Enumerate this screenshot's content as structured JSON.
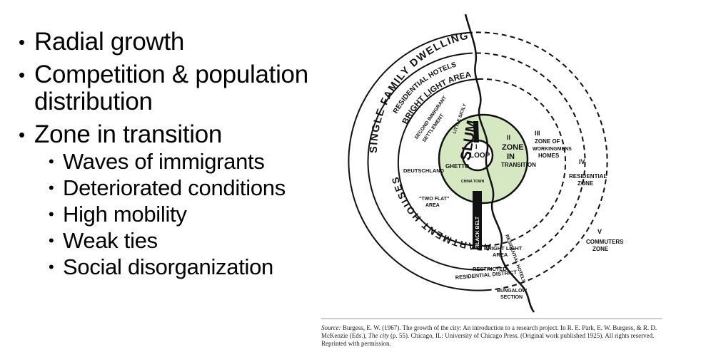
{
  "bullets": [
    {
      "text": "Radial growth",
      "sub": []
    },
    {
      "text": "Competition & population distribution",
      "sub": []
    },
    {
      "text": "Zone in transition",
      "sub": [
        "Waves of immigrants",
        "Deteriorated conditions",
        "High mobility",
        "Weak ties",
        "Social disorganization"
      ]
    }
  ],
  "diagram": {
    "zones": {
      "z1_num": "I",
      "z1_name": "LOOP",
      "z2_num": "II",
      "z2_name_a": "ZONE",
      "z2_name_b": "IN",
      "z2_name_c": "TRANSITION",
      "z3_num": "III",
      "z3_name_a": "ZONE OF",
      "z3_name_b": "WORKINGMENS",
      "z3_name_c": "HOMES",
      "z4_num": "IV",
      "z4_name_a": "RESIDENTIAL",
      "z4_name_b": "ZONE",
      "z5_num": "V",
      "z5_name_a": "COMMUTERS",
      "z5_name_b": "ZONE"
    },
    "labels": {
      "single_family": "SINGLE FAMILY DWELLINGS",
      "residential_hotels": "RESIDENTIAL HOTELS",
      "bright_light_area": "BRIGHT LIGHT AREA",
      "second_immigrant": "SECOND IMMIGRANT",
      "settlement": "SETTLEMENT",
      "apartment_houses": "APARTMENT HOUSES",
      "deutschland": "DEUTSCHLAND",
      "ghetto": "GHETTO",
      "slum": "SLUM",
      "little_sicily": "LITTLE SICILY",
      "chinatown": "CHINA TOWN",
      "two_flat": "\"TWO FLAT\"",
      "two_flat_area": "AREA",
      "black_belt": "BLACK BELT",
      "bright_light_lower_a": "BRIGHT LIGHT",
      "bright_light_lower_b": "AREA",
      "restricted_a": "RESTRICTED",
      "restricted_b": "RESIDENTIAL DISTRICT",
      "residential_hotels_lower": "RESIDENTIAL HOTELS",
      "bungalow_a": "BUNGALOW",
      "bungalow_b": "SECTION"
    },
    "colors": {
      "transition_fill": "#d6e8c2",
      "ink": "#111111"
    }
  },
  "source": {
    "label": "Source:",
    "text": " Burgess, E. W. (1967). The growth of the city: An introduction to a research project. In R. E. Park, E. W. Burgess, & R. D. McKenzie (Eds.), ",
    "book": "The city",
    "tail": " (p. 55). Chicago, IL: University of Chicago Press. (Original work published 1925). All rights reserved. Reprinted with permission."
  }
}
